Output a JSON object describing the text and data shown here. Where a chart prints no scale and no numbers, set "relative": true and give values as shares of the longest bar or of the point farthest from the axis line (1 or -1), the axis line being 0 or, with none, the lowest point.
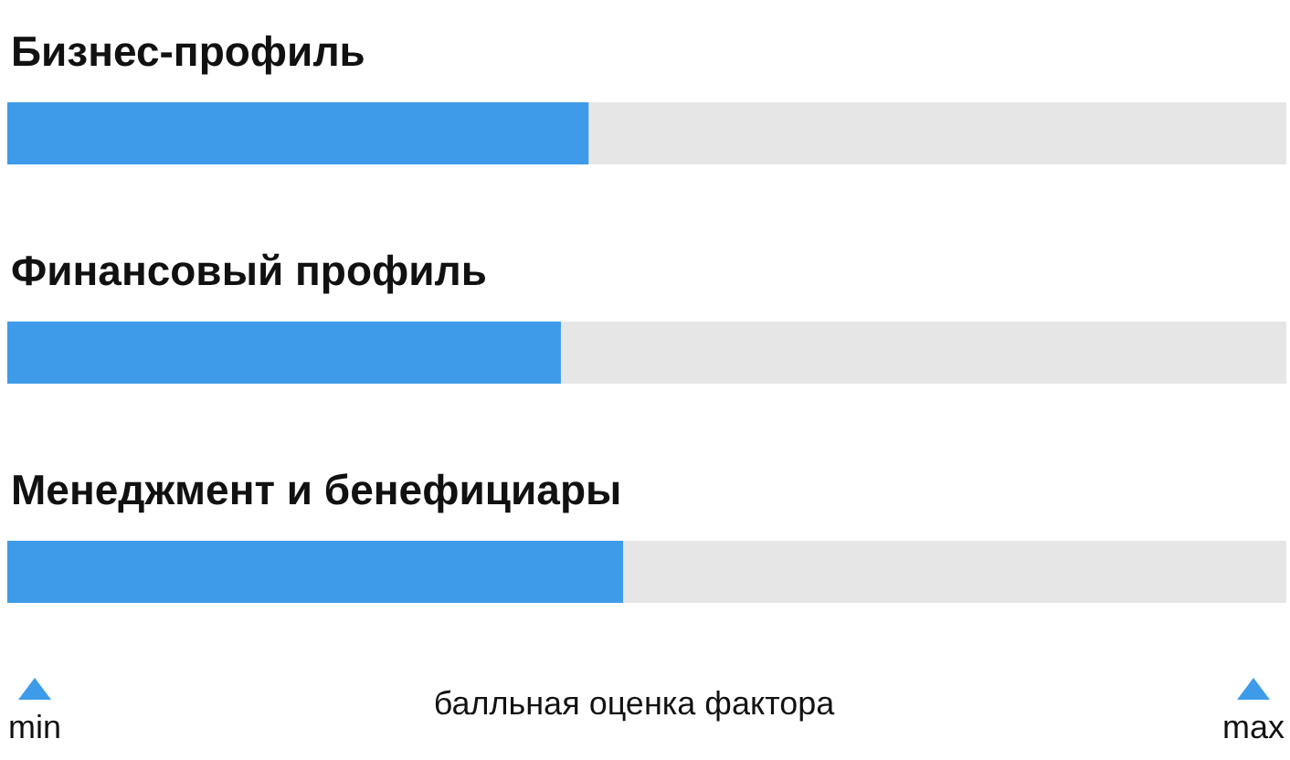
{
  "chart_data": {
    "type": "bar",
    "orientation": "horizontal",
    "relative": true,
    "categories": [
      "Бизнес-профиль",
      "Финансовый профиль",
      "Менеджмент и бенефициары"
    ],
    "values": [
      0.944,
      0.899,
      1
    ],
    "color": "#3d9be9",
    "xlabel": "балльная оценка фактора",
    "annotations": [
      "min",
      "max"
    ]
  }
}
